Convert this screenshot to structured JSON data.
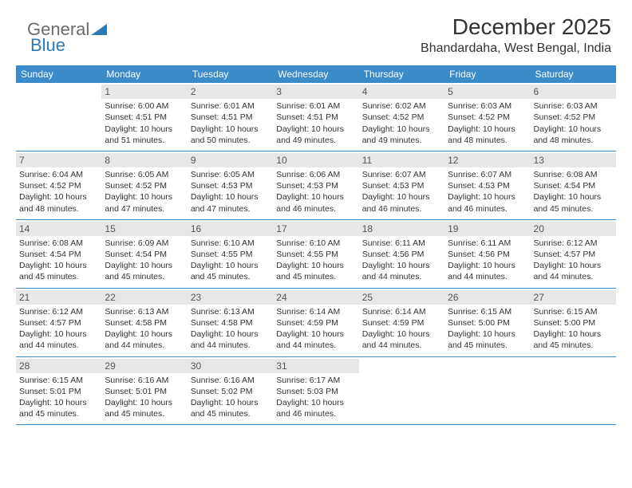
{
  "logo": {
    "text1": "General",
    "text2": "Blue"
  },
  "title": "December 2025",
  "location": "Bhandardaha, West Bengal, India",
  "colors": {
    "header_bg": "#3b8bc8",
    "header_fg": "#ffffff",
    "daynum_bg": "#e7e7e7",
    "border": "#3b8bc8",
    "text": "#333333",
    "logo_general": "#6b6b6b",
    "logo_blue": "#2a7ab8"
  },
  "day_names": [
    "Sunday",
    "Monday",
    "Tuesday",
    "Wednesday",
    "Thursday",
    "Friday",
    "Saturday"
  ],
  "weeks": [
    [
      {
        "n": "",
        "sr": "",
        "ss": "",
        "dl": ""
      },
      {
        "n": "1",
        "sr": "Sunrise: 6:00 AM",
        "ss": "Sunset: 4:51 PM",
        "dl": "Daylight: 10 hours and 51 minutes."
      },
      {
        "n": "2",
        "sr": "Sunrise: 6:01 AM",
        "ss": "Sunset: 4:51 PM",
        "dl": "Daylight: 10 hours and 50 minutes."
      },
      {
        "n": "3",
        "sr": "Sunrise: 6:01 AM",
        "ss": "Sunset: 4:51 PM",
        "dl": "Daylight: 10 hours and 49 minutes."
      },
      {
        "n": "4",
        "sr": "Sunrise: 6:02 AM",
        "ss": "Sunset: 4:52 PM",
        "dl": "Daylight: 10 hours and 49 minutes."
      },
      {
        "n": "5",
        "sr": "Sunrise: 6:03 AM",
        "ss": "Sunset: 4:52 PM",
        "dl": "Daylight: 10 hours and 48 minutes."
      },
      {
        "n": "6",
        "sr": "Sunrise: 6:03 AM",
        "ss": "Sunset: 4:52 PM",
        "dl": "Daylight: 10 hours and 48 minutes."
      }
    ],
    [
      {
        "n": "7",
        "sr": "Sunrise: 6:04 AM",
        "ss": "Sunset: 4:52 PM",
        "dl": "Daylight: 10 hours and 48 minutes."
      },
      {
        "n": "8",
        "sr": "Sunrise: 6:05 AM",
        "ss": "Sunset: 4:52 PM",
        "dl": "Daylight: 10 hours and 47 minutes."
      },
      {
        "n": "9",
        "sr": "Sunrise: 6:05 AM",
        "ss": "Sunset: 4:53 PM",
        "dl": "Daylight: 10 hours and 47 minutes."
      },
      {
        "n": "10",
        "sr": "Sunrise: 6:06 AM",
        "ss": "Sunset: 4:53 PM",
        "dl": "Daylight: 10 hours and 46 minutes."
      },
      {
        "n": "11",
        "sr": "Sunrise: 6:07 AM",
        "ss": "Sunset: 4:53 PM",
        "dl": "Daylight: 10 hours and 46 minutes."
      },
      {
        "n": "12",
        "sr": "Sunrise: 6:07 AM",
        "ss": "Sunset: 4:53 PM",
        "dl": "Daylight: 10 hours and 46 minutes."
      },
      {
        "n": "13",
        "sr": "Sunrise: 6:08 AM",
        "ss": "Sunset: 4:54 PM",
        "dl": "Daylight: 10 hours and 45 minutes."
      }
    ],
    [
      {
        "n": "14",
        "sr": "Sunrise: 6:08 AM",
        "ss": "Sunset: 4:54 PM",
        "dl": "Daylight: 10 hours and 45 minutes."
      },
      {
        "n": "15",
        "sr": "Sunrise: 6:09 AM",
        "ss": "Sunset: 4:54 PM",
        "dl": "Daylight: 10 hours and 45 minutes."
      },
      {
        "n": "16",
        "sr": "Sunrise: 6:10 AM",
        "ss": "Sunset: 4:55 PM",
        "dl": "Daylight: 10 hours and 45 minutes."
      },
      {
        "n": "17",
        "sr": "Sunrise: 6:10 AM",
        "ss": "Sunset: 4:55 PM",
        "dl": "Daylight: 10 hours and 45 minutes."
      },
      {
        "n": "18",
        "sr": "Sunrise: 6:11 AM",
        "ss": "Sunset: 4:56 PM",
        "dl": "Daylight: 10 hours and 44 minutes."
      },
      {
        "n": "19",
        "sr": "Sunrise: 6:11 AM",
        "ss": "Sunset: 4:56 PM",
        "dl": "Daylight: 10 hours and 44 minutes."
      },
      {
        "n": "20",
        "sr": "Sunrise: 6:12 AM",
        "ss": "Sunset: 4:57 PM",
        "dl": "Daylight: 10 hours and 44 minutes."
      }
    ],
    [
      {
        "n": "21",
        "sr": "Sunrise: 6:12 AM",
        "ss": "Sunset: 4:57 PM",
        "dl": "Daylight: 10 hours and 44 minutes."
      },
      {
        "n": "22",
        "sr": "Sunrise: 6:13 AM",
        "ss": "Sunset: 4:58 PM",
        "dl": "Daylight: 10 hours and 44 minutes."
      },
      {
        "n": "23",
        "sr": "Sunrise: 6:13 AM",
        "ss": "Sunset: 4:58 PM",
        "dl": "Daylight: 10 hours and 44 minutes."
      },
      {
        "n": "24",
        "sr": "Sunrise: 6:14 AM",
        "ss": "Sunset: 4:59 PM",
        "dl": "Daylight: 10 hours and 44 minutes."
      },
      {
        "n": "25",
        "sr": "Sunrise: 6:14 AM",
        "ss": "Sunset: 4:59 PM",
        "dl": "Daylight: 10 hours and 44 minutes."
      },
      {
        "n": "26",
        "sr": "Sunrise: 6:15 AM",
        "ss": "Sunset: 5:00 PM",
        "dl": "Daylight: 10 hours and 45 minutes."
      },
      {
        "n": "27",
        "sr": "Sunrise: 6:15 AM",
        "ss": "Sunset: 5:00 PM",
        "dl": "Daylight: 10 hours and 45 minutes."
      }
    ],
    [
      {
        "n": "28",
        "sr": "Sunrise: 6:15 AM",
        "ss": "Sunset: 5:01 PM",
        "dl": "Daylight: 10 hours and 45 minutes."
      },
      {
        "n": "29",
        "sr": "Sunrise: 6:16 AM",
        "ss": "Sunset: 5:01 PM",
        "dl": "Daylight: 10 hours and 45 minutes."
      },
      {
        "n": "30",
        "sr": "Sunrise: 6:16 AM",
        "ss": "Sunset: 5:02 PM",
        "dl": "Daylight: 10 hours and 45 minutes."
      },
      {
        "n": "31",
        "sr": "Sunrise: 6:17 AM",
        "ss": "Sunset: 5:03 PM",
        "dl": "Daylight: 10 hours and 46 minutes."
      },
      {
        "n": "",
        "sr": "",
        "ss": "",
        "dl": ""
      },
      {
        "n": "",
        "sr": "",
        "ss": "",
        "dl": ""
      },
      {
        "n": "",
        "sr": "",
        "ss": "",
        "dl": ""
      }
    ]
  ]
}
